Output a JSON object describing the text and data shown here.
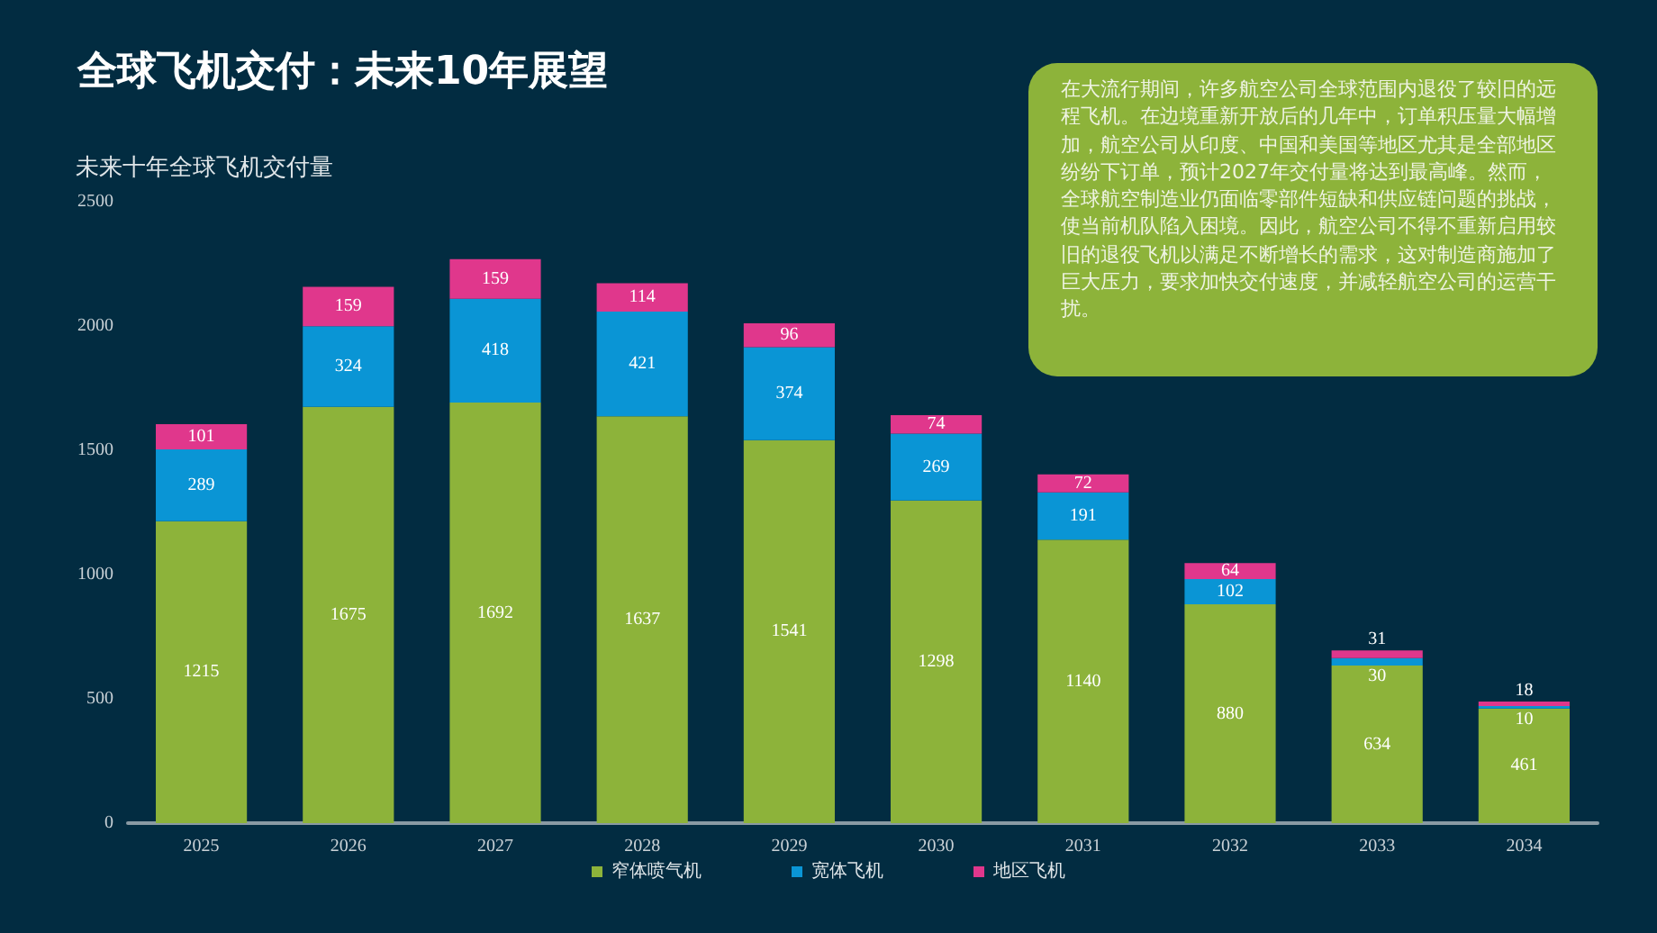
{
  "chart_data": {
    "type": "bar",
    "title": "全球飞机交付：未来10年展望",
    "ylabel": "未来十年全球飞机交付量",
    "annotations": [
      "在大流行期间，许多航空公司全球范围内退役了较旧的远程飞机。在边境重新开放后的几年中，订单积压量大幅增加，航空公司从印度、中国和美国等地区尤其是全部地区纷纷下订单，预计2027年交付量将达到最高峰。然而，全球航空制造业仍面临零部件短缺和供应链问题的挑战，使当前机队陷入困境。因此，航空公司不得不重新启用较旧的退役飞机以满足不断增长的需求，这对制造商施加了巨大压力，要求加快交付速度，并减轻航空公司的运营干扰。"
    ],
    "categories": [
      "2025",
      "2026",
      "2027",
      "2028",
      "2029",
      "2030",
      "2031",
      "2032",
      "2033",
      "2034"
    ],
    "series": [
      {
        "name": "窄体喷气机",
        "color": "#8db33a",
        "values": [
          1215,
          1675,
          1692,
          1637,
          1541,
          1298,
          1140,
          880,
          634,
          461
        ]
      },
      {
        "name": "宽体飞机",
        "color": "#0a95d5",
        "values": [
          289,
          324,
          418,
          421,
          374,
          269,
          191,
          102,
          30,
          10
        ]
      },
      {
        "name": "地区飞机",
        "color": "#e0378c",
        "values": [
          101,
          159,
          159,
          114,
          96,
          74,
          72,
          64,
          31,
          18
        ]
      }
    ],
    "stacked": true,
    "ylim": [
      0,
      2500
    ],
    "yticks": [
      0,
      500,
      1000,
      1500,
      2000,
      2500
    ],
    "grid": false,
    "legend": "bottom",
    "data_labels": true
  }
}
